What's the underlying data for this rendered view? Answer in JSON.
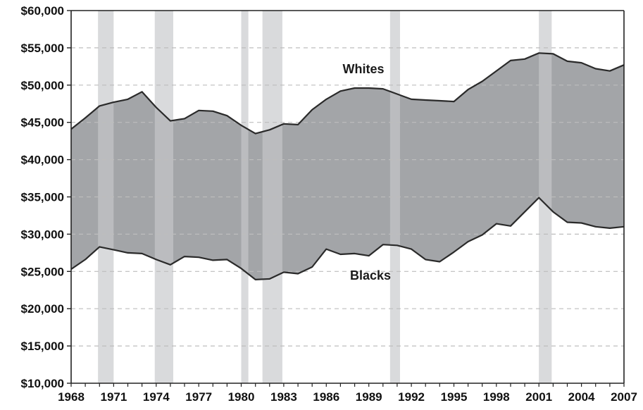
{
  "chart_data": {
    "type": "area",
    "title": "",
    "xlabel": "",
    "ylabel": "",
    "ylim": [
      10000,
      60000
    ],
    "xlim": [
      1968,
      2007
    ],
    "y_ticks": [
      10000,
      15000,
      20000,
      25000,
      30000,
      35000,
      40000,
      45000,
      50000,
      55000,
      60000
    ],
    "y_tick_labels": [
      "$10,000",
      "$15,000",
      "$20,000",
      "$25,000",
      "$30,000",
      "$35,000",
      "$40,000",
      "$45,000",
      "$50,000",
      "$55,000",
      "$60,000"
    ],
    "x_ticks": [
      1968,
      1971,
      1974,
      1977,
      1980,
      1983,
      1986,
      1989,
      1992,
      1995,
      1998,
      2001,
      2004,
      2007
    ],
    "x_tick_labels": [
      "1968",
      "1971",
      "1974",
      "1977",
      "1980",
      "1983",
      "1986",
      "1989",
      "1992",
      "1995",
      "1998",
      "2001",
      "2004",
      "2007"
    ],
    "grid": "horizontal dashed",
    "x": [
      1968,
      1969,
      1970,
      1971,
      1972,
      1973,
      1974,
      1975,
      1976,
      1977,
      1978,
      1979,
      1980,
      1981,
      1982,
      1983,
      1984,
      1985,
      1986,
      1987,
      1988,
      1989,
      1990,
      1991,
      1992,
      1993,
      1994,
      1995,
      1996,
      1997,
      1998,
      1999,
      2000,
      2001,
      2002,
      2003,
      2004,
      2005,
      2006,
      2007
    ],
    "series": [
      {
        "name": "Whites",
        "values": [
          44100,
          45600,
          47200,
          47700,
          48100,
          49100,
          47000,
          45200,
          45500,
          46600,
          46500,
          45900,
          44600,
          43500,
          44000,
          44800,
          44700,
          46700,
          48100,
          49200,
          49600,
          49600,
          49500,
          48800,
          48100,
          48000,
          47900,
          47800,
          49400,
          50500,
          51900,
          53300,
          53500,
          54300,
          54200,
          53200,
          53000,
          52200,
          51900,
          52700
        ]
      },
      {
        "name": "Blacks",
        "values": [
          25300,
          26600,
          28300,
          27900,
          27500,
          27400,
          26600,
          25900,
          27000,
          26900,
          26500,
          26600,
          25400,
          23900,
          24000,
          24900,
          24700,
          25600,
          28000,
          27300,
          27400,
          27100,
          28600,
          28500,
          28000,
          26600,
          26300,
          27600,
          29000,
          29900,
          31400,
          31100,
          33000,
          34900,
          33000,
          31600,
          31500,
          31000,
          30800,
          31000
        ]
      }
    ],
    "shaded_periods": [
      [
        1969.9,
        1971.0
      ],
      [
        1973.9,
        1975.2
      ],
      [
        1980.0,
        1980.5
      ],
      [
        1981.5,
        1982.9
      ],
      [
        1990.5,
        1991.2
      ],
      [
        2001.0,
        2001.9
      ]
    ],
    "colors": {
      "band": "#a3a5a8",
      "shading": "#d9dadc",
      "line": "#2a2a2a",
      "grid": "#bdbdbd",
      "axis": "#222222"
    }
  }
}
